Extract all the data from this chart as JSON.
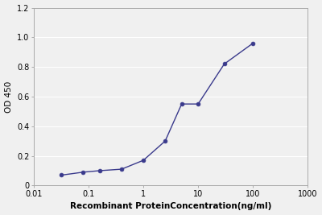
{
  "x": [
    0.032,
    0.08,
    0.16,
    0.4,
    1.0,
    2.5,
    5.0,
    10.0,
    30.0,
    100.0
  ],
  "y": [
    0.07,
    0.09,
    0.1,
    0.11,
    0.17,
    0.3,
    0.55,
    0.55,
    0.82,
    0.96
  ],
  "line_color": "#3a3a8c",
  "marker_color": "#3a3a8c",
  "xlabel": "Recombinant ProteinConcentration(ng/ml)",
  "ylabel": "OD 450",
  "xlim": [
    0.01,
    1000
  ],
  "ylim": [
    0,
    1.2
  ],
  "yticks": [
    0,
    0.2,
    0.4,
    0.6,
    0.8,
    1.0,
    1.2
  ],
  "xticks": [
    0.01,
    0.1,
    1,
    10,
    100,
    1000
  ],
  "xtick_labels": [
    "0.01",
    "0.1",
    "1",
    "10",
    "100",
    "1000"
  ],
  "background_color": "#f0f0f0",
  "grid_color": "#ffffff",
  "title": ""
}
